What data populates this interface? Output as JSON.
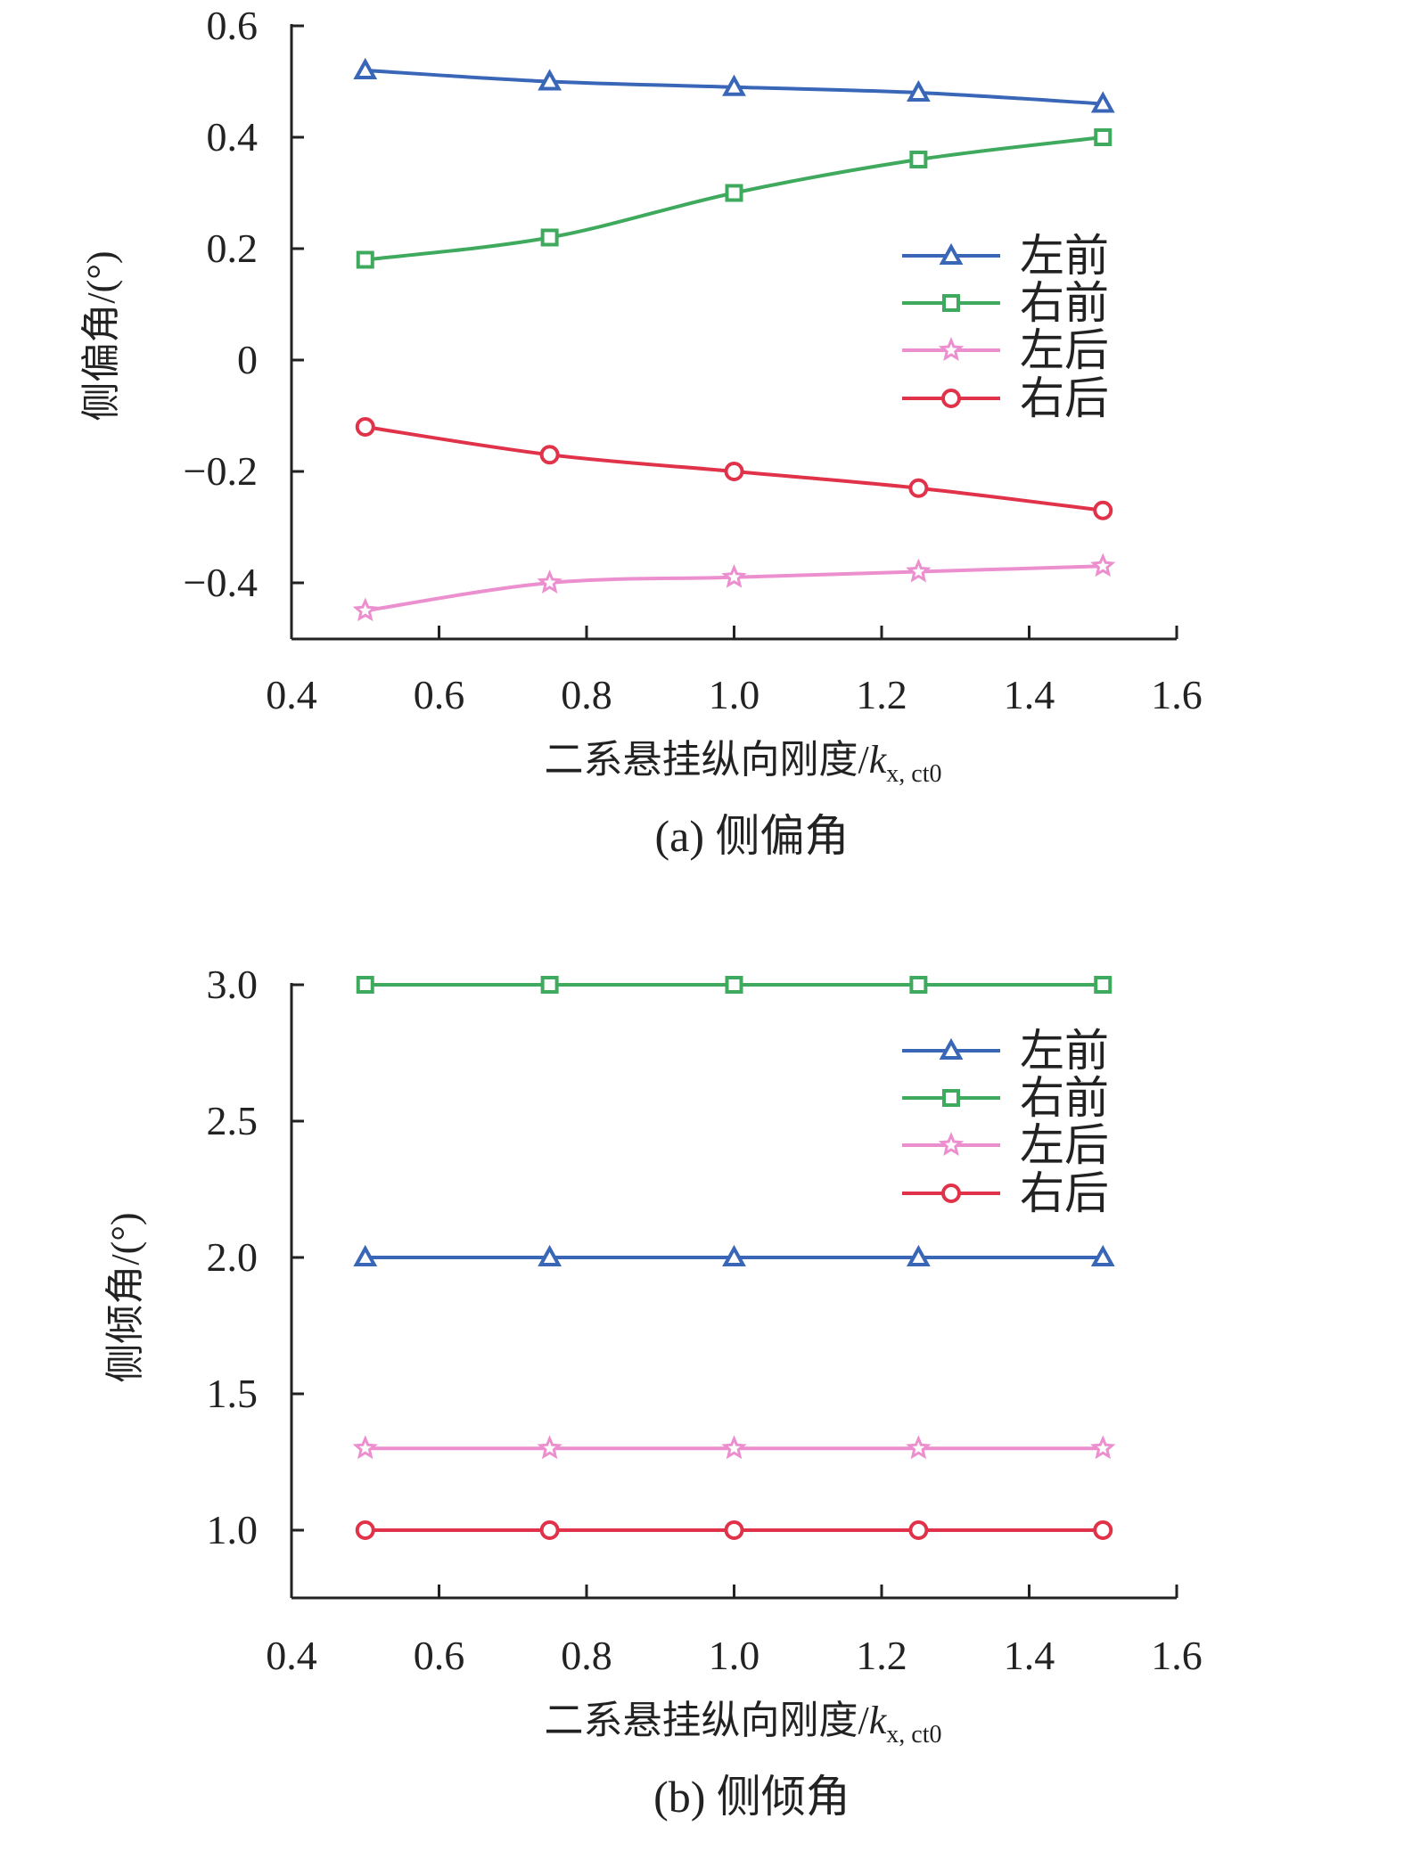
{
  "colors": {
    "左前": "#3a66b8",
    "右前": "#3faa5e",
    "左后": "#ec8fcf",
    "右后": "#e0334a",
    "axis": "#222222"
  },
  "chart_data": [
    {
      "type": "line",
      "caption": "(a) 侧偏角",
      "xlabel_main": "二系悬挂纵向刚度/",
      "xlabel_var": "k",
      "xlabel_sub": "x, ct0",
      "ylabel": "侧偏角/(°)",
      "xlim": [
        0.4,
        1.6
      ],
      "ylim": [
        -0.5,
        0.6
      ],
      "xticks": [
        "0.4",
        "0.6",
        "0.8",
        "1.0",
        "1.2",
        "1.4",
        "1.6"
      ],
      "yticks": [
        {
          "v": 0.6,
          "label": "0.6"
        },
        {
          "v": 0.4,
          "label": "0.4"
        },
        {
          "v": 0.2,
          "label": "0.2"
        },
        {
          "v": 0,
          "label": "0"
        },
        {
          "v": -0.2,
          "label": "−0.2"
        },
        {
          "v": -0.4,
          "label": "−0.4"
        }
      ],
      "x": [
        0.5,
        0.75,
        1.0,
        1.25,
        1.5
      ],
      "legend_position": "right",
      "series": [
        {
          "name": "左前",
          "marker": "triangle",
          "values": [
            0.52,
            0.5,
            0.49,
            0.48,
            0.46
          ]
        },
        {
          "name": "右前",
          "marker": "square",
          "values": [
            0.18,
            0.22,
            0.3,
            0.36,
            0.4
          ]
        },
        {
          "name": "左后",
          "marker": "star",
          "values": [
            -0.45,
            -0.4,
            -0.39,
            -0.38,
            -0.37
          ]
        },
        {
          "name": "右后",
          "marker": "circle",
          "values": [
            -0.12,
            -0.17,
            -0.2,
            -0.23,
            -0.27
          ]
        }
      ]
    },
    {
      "type": "line",
      "caption": "(b) 侧倾角",
      "xlabel_main": "二系悬挂纵向刚度/",
      "xlabel_var": "k",
      "xlabel_sub": "x, ct0",
      "ylabel": "侧倾角/(°)",
      "xlim": [
        0.4,
        1.6
      ],
      "ylim": [
        0.75,
        3.0
      ],
      "xticks": [
        "0.4",
        "0.6",
        "0.8",
        "1.0",
        "1.2",
        "1.4",
        "1.6"
      ],
      "yticks": [
        {
          "v": 3.0,
          "label": "3.0"
        },
        {
          "v": 2.5,
          "label": "2.5"
        },
        {
          "v": 2.0,
          "label": "2.0"
        },
        {
          "v": 1.5,
          "label": "1.5"
        },
        {
          "v": 1.0,
          "label": "1.0"
        }
      ],
      "x": [
        0.5,
        0.75,
        1.0,
        1.25,
        1.5
      ],
      "legend_position": "top-right",
      "series": [
        {
          "name": "左前",
          "marker": "triangle",
          "values": [
            2.0,
            2.0,
            2.0,
            2.0,
            2.0
          ]
        },
        {
          "name": "右前",
          "marker": "square",
          "values": [
            3.0,
            3.0,
            3.0,
            3.0,
            3.0
          ]
        },
        {
          "name": "左后",
          "marker": "star",
          "values": [
            1.3,
            1.3,
            1.3,
            1.3,
            1.3
          ]
        },
        {
          "name": "右后",
          "marker": "circle",
          "values": [
            1.0,
            1.0,
            1.0,
            1.0,
            1.0
          ]
        }
      ]
    }
  ]
}
